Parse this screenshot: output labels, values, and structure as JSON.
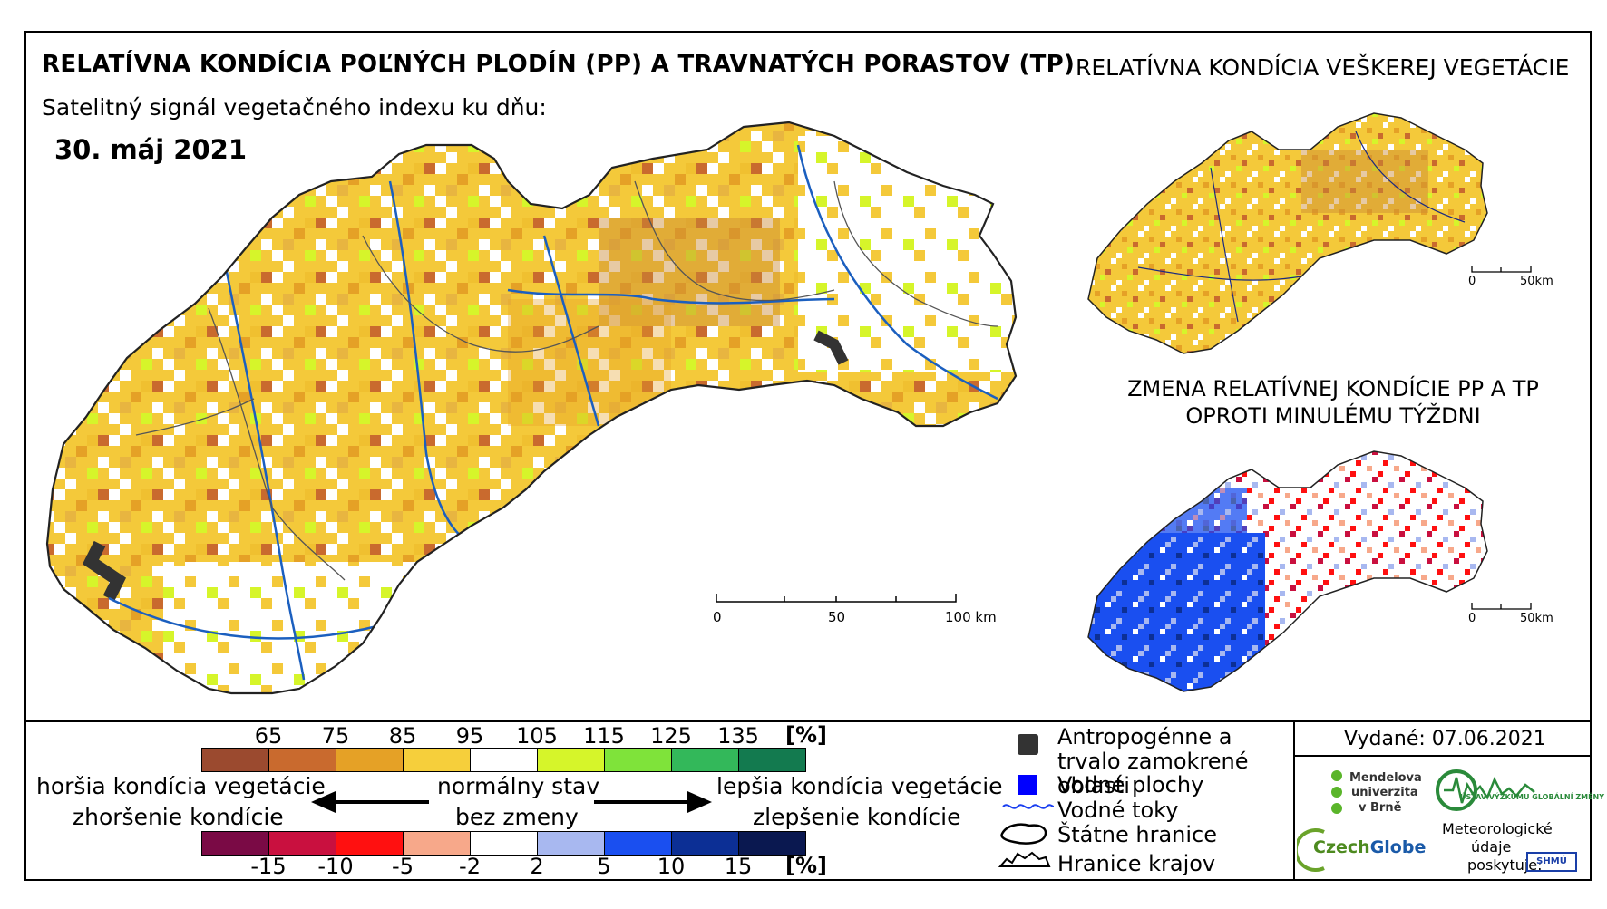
{
  "header": {
    "title": "RELATÍVNA KONDÍCIA POĽNÝCH PLODÍN (PP) A TRAVNATÝCH PORASTOV (TP)",
    "subtitle": "Satelitný signál vegetačného indexu ku dňu:",
    "date": "30. máj 2021",
    "title_right": "RELATÍVNA KONDÍCIA VEŠKEREJ VEGETÁCIE",
    "change_title": "ZMENA RELATÍVNEJ KONDÍCIE PP A TP OPROTI MINULÉMU TÝŽDNI"
  },
  "main_scale": {
    "labels": [
      "0",
      "50",
      "100 km"
    ]
  },
  "mini_scale": {
    "labels": [
      "0",
      "50km"
    ]
  },
  "condition_scale": {
    "unit": "[%]",
    "ticks": [
      "65",
      "75",
      "85",
      "95",
      "105",
      "115",
      "125",
      "135"
    ],
    "colors": [
      "#9b4a2f",
      "#c96a2e",
      "#e5a126",
      "#f6cf3b",
      "#ffffff",
      "#d6f52a",
      "#7fe33a",
      "#33b85a",
      "#137a4f"
    ]
  },
  "change_scale": {
    "unit": "[%]",
    "ticks": [
      "-15",
      "-10",
      "-5",
      "-2",
      "2",
      "5",
      "10",
      "15"
    ],
    "colors": [
      "#7a0a45",
      "#c9103f",
      "#ff1010",
      "#f7a88a",
      "#ffffff",
      "#a8b8f0",
      "#1a4ff0",
      "#0c2f95",
      "#0a1850"
    ]
  },
  "descriptions": {
    "worse_1": "horšia kondícia vegetácie",
    "worse_2": "zhoršenie kondície",
    "normal_1": "normálny stav",
    "normal_2": "bez zmeny",
    "better_1": "lepšia kondícia vegetácie",
    "better_2": "zlepšenie kondície"
  },
  "legend": {
    "anthropogenic": "Antropogénne a trvalo zamokrené oblasti",
    "water_bodies": "Vodné plochy",
    "water_streams": "Vodné toky",
    "state_border": "Štátne hranice",
    "region_border": "Hranice krajov"
  },
  "issued": "Vydané: 07.06.2021",
  "logos": {
    "mendel_1": "Mendelova",
    "mendel_2": "univerzita",
    "mendel_3": "v Brně",
    "ustav": "ÚSTAV VÝZKUMU GLOBÁLNÍ ZMĚNY",
    "czechglobe_1": "Czech",
    "czechglobe_2": "Globe",
    "shmu": "SHMÚ",
    "meteo_1": "Meteorologické",
    "meteo_2": "údaje",
    "meteo_3": "poskytuje:"
  },
  "colors": {
    "water_stream": "#1b5fbf",
    "anthropogenic": "#333333",
    "water_body": "#0000ff"
  }
}
